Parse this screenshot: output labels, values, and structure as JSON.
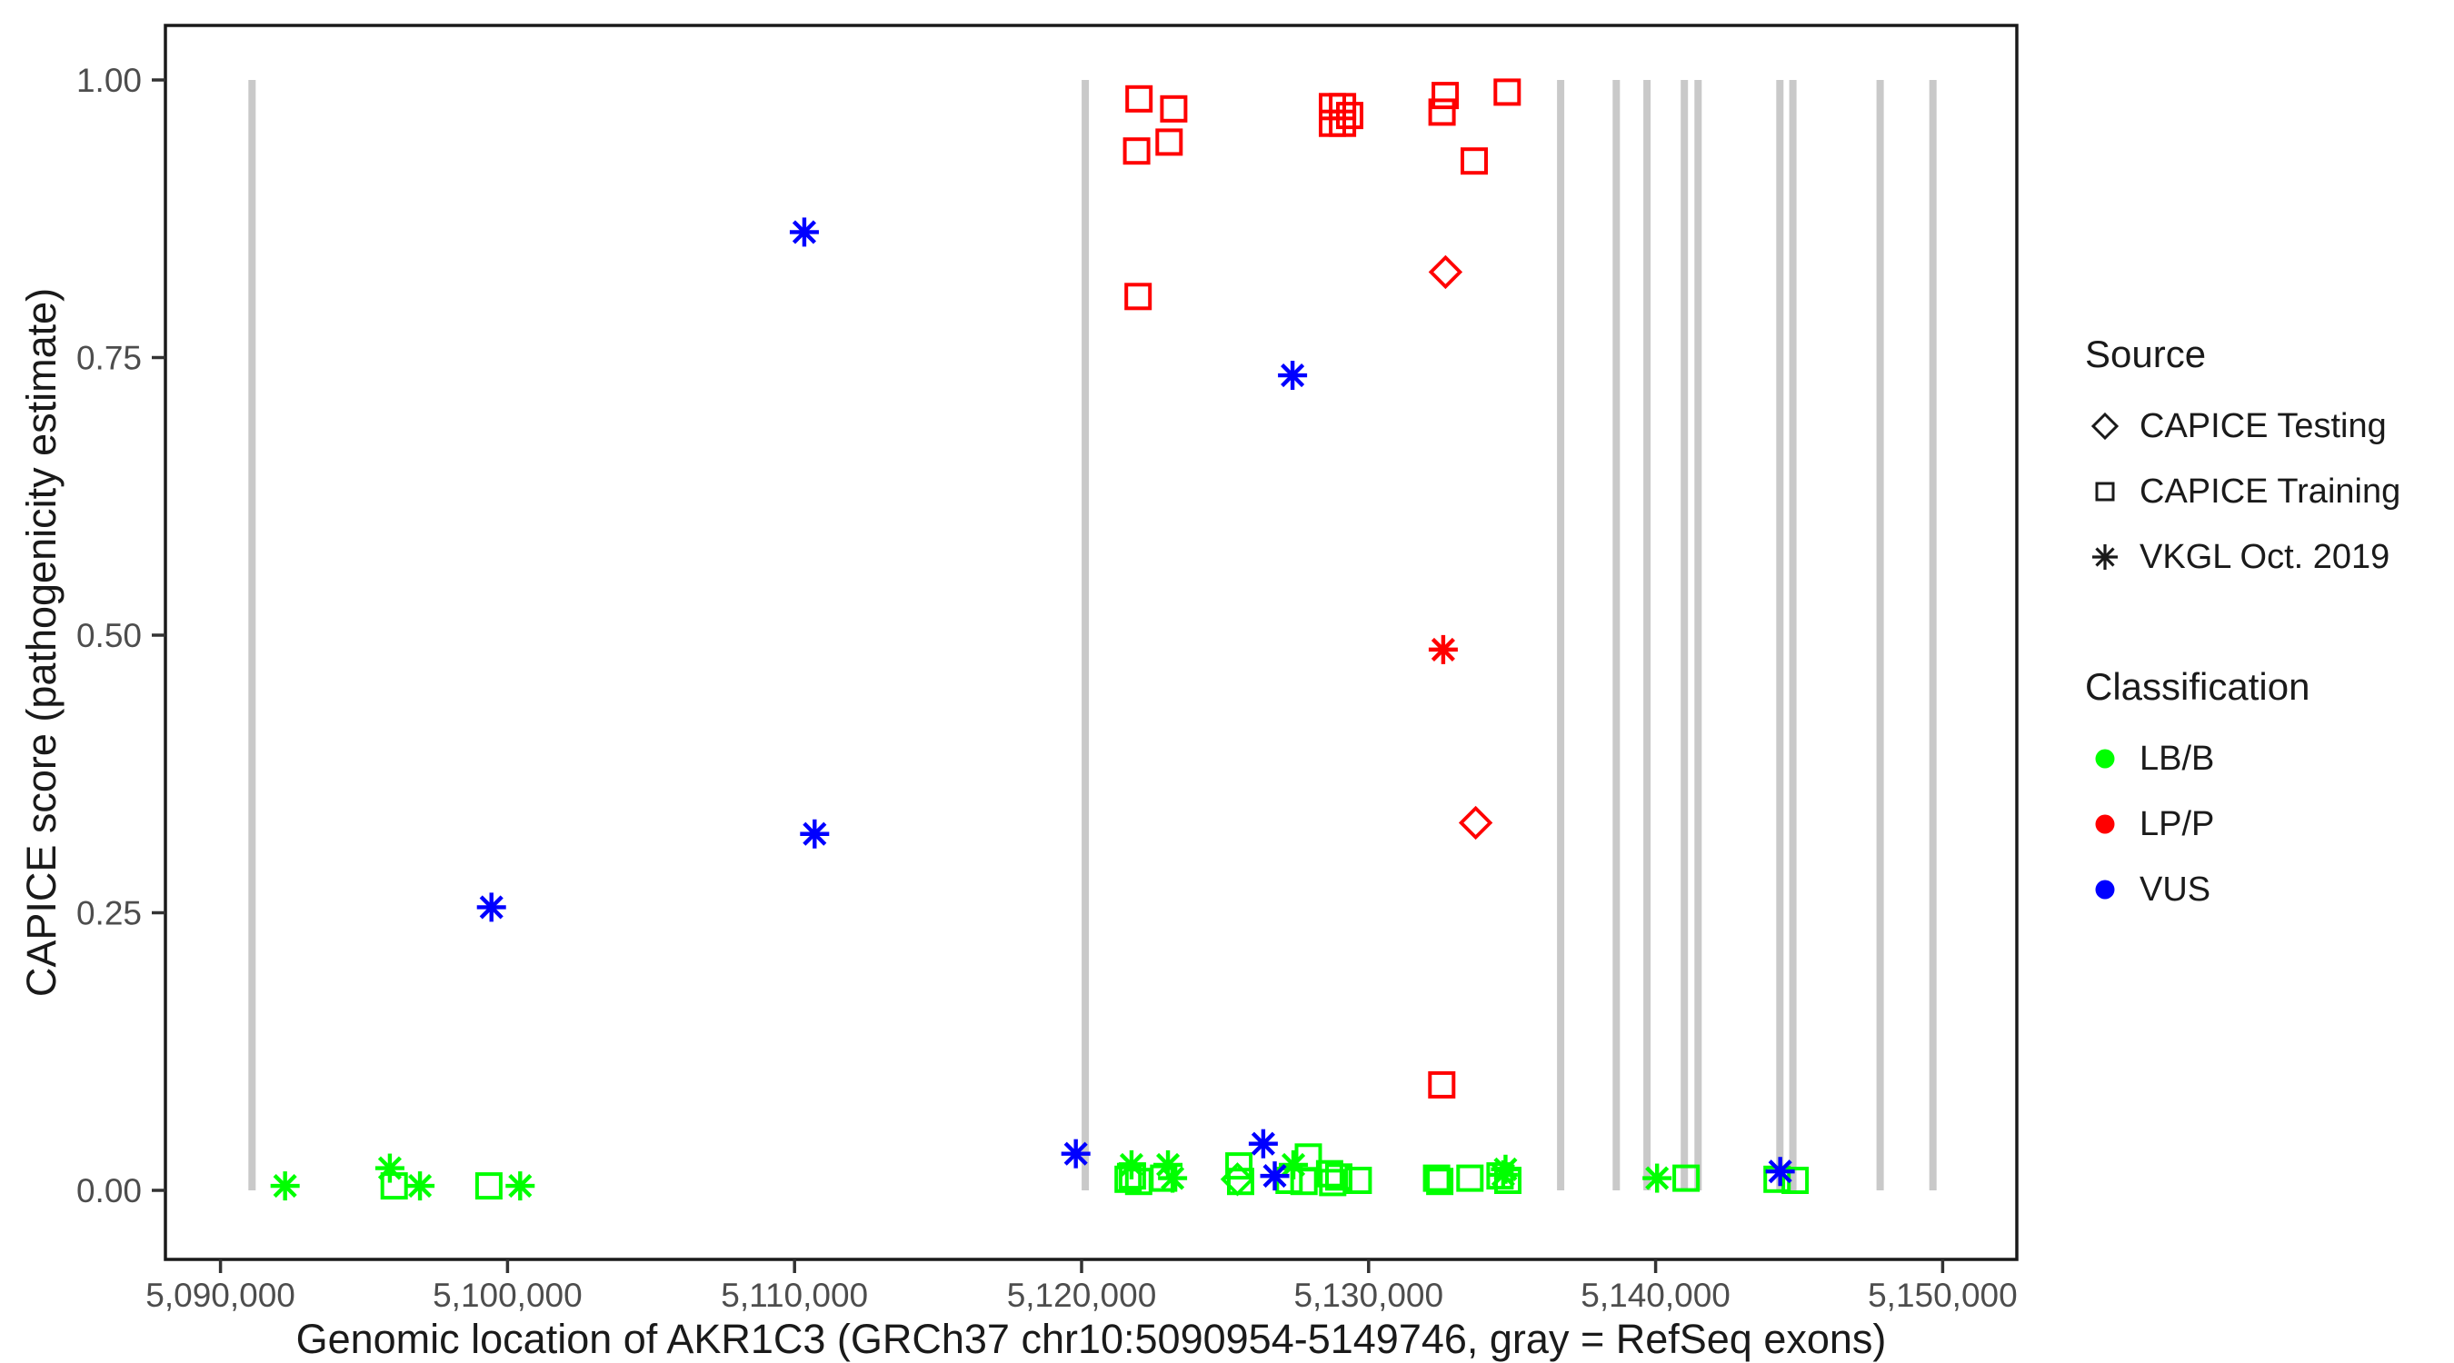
{
  "chart_data": {
    "type": "scatter",
    "title": "",
    "xlabel": "Genomic location of AKR1C3 (GRCh37 chr10:5090954-5149746, gray = RefSeq exons)",
    "ylabel": "CAPICE score (pathogenicity estimate)",
    "x_domain": [
      5088080,
      5152550
    ],
    "y_domain": [
      -0.055,
      1.05
    ],
    "grid": false,
    "legend_position": "right",
    "x_ticks": [
      {
        "value": 5090000,
        "label": "5,090,000"
      },
      {
        "value": 5100000,
        "label": "5,100,000"
      },
      {
        "value": 5110000,
        "label": "5,110,000"
      },
      {
        "value": 5120000,
        "label": "5,120,000"
      },
      {
        "value": 5130000,
        "label": "5,130,000"
      },
      {
        "value": 5140000,
        "label": "5,140,000"
      },
      {
        "value": 5150000,
        "label": "5,150,000"
      }
    ],
    "y_ticks": [
      {
        "value": 0.0,
        "label": "0.00"
      },
      {
        "value": 0.25,
        "label": "0.25"
      },
      {
        "value": 0.5,
        "label": "0.50"
      },
      {
        "value": 0.75,
        "label": "0.75"
      },
      {
        "value": 1.0,
        "label": "1.00"
      }
    ],
    "style": {
      "exon_color": "#c9c9c9",
      "border_color": "#1a1a1a",
      "tick_text_color": "#4d4d4d",
      "background": "#ffffff"
    },
    "classification_colors": {
      "LB/B": "#00ff00",
      "LP/P": "#ff0000",
      "VUS": "#0000ff"
    },
    "source_shapes": {
      "CAPICE Testing": "diamond",
      "CAPICE Training": "square",
      "VKGL Oct. 2019": "asterisk"
    },
    "exons": [
      5091100,
      5120130,
      5136690,
      5138630,
      5139700,
      5141000,
      5141480,
      5144330,
      5144780,
      5147820,
      5149660
    ],
    "exon_span": {
      "y_from": 0.0,
      "y_to": 1.0
    },
    "points": [
      {
        "x": 5122000,
        "y": 0.983,
        "source": "CAPICE Training",
        "classification": "LP/P"
      },
      {
        "x": 5123210,
        "y": 0.974,
        "source": "CAPICE Training",
        "classification": "LP/P"
      },
      {
        "x": 5123050,
        "y": 0.944,
        "source": "CAPICE Training",
        "classification": "LP/P"
      },
      {
        "x": 5121920,
        "y": 0.936,
        "source": "CAPICE Training",
        "classification": "LP/P"
      },
      {
        "x": 5121970,
        "y": 0.805,
        "source": "CAPICE Training",
        "classification": "LP/P"
      },
      {
        "x": 5128740,
        "y": 0.976,
        "source": "CAPICE Training",
        "classification": "LP/P"
      },
      {
        "x": 5129090,
        "y": 0.976,
        "source": "CAPICE Training",
        "classification": "LP/P"
      },
      {
        "x": 5128740,
        "y": 0.961,
        "source": "CAPICE Training",
        "classification": "LP/P"
      },
      {
        "x": 5129090,
        "y": 0.961,
        "source": "CAPICE Training",
        "classification": "LP/P"
      },
      {
        "x": 5129340,
        "y": 0.968,
        "source": "CAPICE Training",
        "classification": "LP/P"
      },
      {
        "x": 5132670,
        "y": 0.986,
        "source": "CAPICE Training",
        "classification": "LP/P"
      },
      {
        "x": 5132560,
        "y": 0.971,
        "source": "CAPICE Training",
        "classification": "LP/P"
      },
      {
        "x": 5134830,
        "y": 0.989,
        "source": "CAPICE Training",
        "classification": "LP/P"
      },
      {
        "x": 5133680,
        "y": 0.927,
        "source": "CAPICE Training",
        "classification": "LP/P"
      },
      {
        "x": 5132550,
        "y": 0.095,
        "source": "CAPICE Training",
        "classification": "LP/P"
      },
      {
        "x": 5132680,
        "y": 0.827,
        "source": "CAPICE Testing",
        "classification": "LP/P"
      },
      {
        "x": 5133730,
        "y": 0.331,
        "source": "CAPICE Testing",
        "classification": "LP/P"
      },
      {
        "x": 5132600,
        "y": 0.487,
        "source": "VKGL Oct. 2019",
        "classification": "LP/P"
      },
      {
        "x": 5096050,
        "y": 0.004,
        "source": "CAPICE Training",
        "classification": "LB/B"
      },
      {
        "x": 5099350,
        "y": 0.004,
        "source": "CAPICE Training",
        "classification": "LB/B"
      },
      {
        "x": 5121620,
        "y": 0.01,
        "source": "CAPICE Training",
        "classification": "LB/B"
      },
      {
        "x": 5121770,
        "y": 0.013,
        "source": "CAPICE Training",
        "classification": "LB/B"
      },
      {
        "x": 5121990,
        "y": 0.008,
        "source": "CAPICE Training",
        "classification": "LB/B"
      },
      {
        "x": 5122860,
        "y": 0.011,
        "source": "CAPICE Training",
        "classification": "LB/B"
      },
      {
        "x": 5125480,
        "y": 0.022,
        "source": "CAPICE Training",
        "classification": "LB/B"
      },
      {
        "x": 5125540,
        "y": 0.008,
        "source": "CAPICE Training",
        "classification": "LB/B"
      },
      {
        "x": 5127230,
        "y": 0.009,
        "source": "CAPICE Training",
        "classification": "LB/B"
      },
      {
        "x": 5127750,
        "y": 0.008,
        "source": "CAPICE Training",
        "classification": "LB/B"
      },
      {
        "x": 5127900,
        "y": 0.03,
        "source": "CAPICE Training",
        "classification": "LB/B"
      },
      {
        "x": 5128640,
        "y": 0.015,
        "source": "CAPICE Training",
        "classification": "LB/B"
      },
      {
        "x": 5128750,
        "y": 0.007,
        "source": "CAPICE Training",
        "classification": "LB/B"
      },
      {
        "x": 5128960,
        "y": 0.012,
        "source": "CAPICE Training",
        "classification": "LB/B"
      },
      {
        "x": 5129640,
        "y": 0.009,
        "source": "CAPICE Training",
        "classification": "LB/B"
      },
      {
        "x": 5132370,
        "y": 0.011,
        "source": "CAPICE Training",
        "classification": "LB/B"
      },
      {
        "x": 5132480,
        "y": 0.008,
        "source": "CAPICE Training",
        "classification": "LB/B"
      },
      {
        "x": 5133530,
        "y": 0.011,
        "source": "CAPICE Training",
        "classification": "LB/B"
      },
      {
        "x": 5134580,
        "y": 0.013,
        "source": "CAPICE Training",
        "classification": "LB/B"
      },
      {
        "x": 5134850,
        "y": 0.009,
        "source": "CAPICE Training",
        "classification": "LB/B"
      },
      {
        "x": 5141060,
        "y": 0.011,
        "source": "CAPICE Training",
        "classification": "LB/B"
      },
      {
        "x": 5144230,
        "y": 0.01,
        "source": "CAPICE Training",
        "classification": "LB/B"
      },
      {
        "x": 5144860,
        "y": 0.009,
        "source": "CAPICE Training",
        "classification": "LB/B"
      },
      {
        "x": 5125430,
        "y": 0.01,
        "source": "CAPICE Testing",
        "classification": "LB/B"
      },
      {
        "x": 5092250,
        "y": 0.004,
        "source": "VKGL Oct. 2019",
        "classification": "LB/B"
      },
      {
        "x": 5095900,
        "y": 0.02,
        "source": "VKGL Oct. 2019",
        "classification": "LB/B"
      },
      {
        "x": 5096950,
        "y": 0.004,
        "source": "VKGL Oct. 2019",
        "classification": "LB/B"
      },
      {
        "x": 5100440,
        "y": 0.004,
        "source": "VKGL Oct. 2019",
        "classification": "LB/B"
      },
      {
        "x": 5121740,
        "y": 0.023,
        "source": "VKGL Oct. 2019",
        "classification": "LB/B"
      },
      {
        "x": 5123010,
        "y": 0.023,
        "source": "VKGL Oct. 2019",
        "classification": "LB/B"
      },
      {
        "x": 5123170,
        "y": 0.011,
        "source": "VKGL Oct. 2019",
        "classification": "LB/B"
      },
      {
        "x": 5127380,
        "y": 0.023,
        "source": "VKGL Oct. 2019",
        "classification": "LB/B"
      },
      {
        "x": 5134690,
        "y": 0.014,
        "source": "VKGL Oct. 2019",
        "classification": "LB/B"
      },
      {
        "x": 5134770,
        "y": 0.019,
        "source": "VKGL Oct. 2019",
        "classification": "LB/B"
      },
      {
        "x": 5140050,
        "y": 0.011,
        "source": "VKGL Oct. 2019",
        "classification": "LB/B"
      },
      {
        "x": 5110340,
        "y": 0.863,
        "source": "VKGL Oct. 2019",
        "classification": "VUS"
      },
      {
        "x": 5127350,
        "y": 0.734,
        "source": "VKGL Oct. 2019",
        "classification": "VUS"
      },
      {
        "x": 5110700,
        "y": 0.321,
        "source": "VKGL Oct. 2019",
        "classification": "VUS"
      },
      {
        "x": 5099440,
        "y": 0.255,
        "source": "VKGL Oct. 2019",
        "classification": "VUS"
      },
      {
        "x": 5119800,
        "y": 0.033,
        "source": "VKGL Oct. 2019",
        "classification": "VUS"
      },
      {
        "x": 5126330,
        "y": 0.042,
        "source": "VKGL Oct. 2019",
        "classification": "VUS"
      },
      {
        "x": 5126730,
        "y": 0.013,
        "source": "VKGL Oct. 2019",
        "classification": "VUS"
      },
      {
        "x": 5144340,
        "y": 0.017,
        "source": "VKGL Oct. 2019",
        "classification": "VUS"
      }
    ]
  },
  "legend": {
    "source": {
      "title": "Source",
      "items": [
        {
          "shape": "diamond",
          "label": "CAPICE Testing"
        },
        {
          "shape": "square",
          "label": "CAPICE Training"
        },
        {
          "shape": "asterisk",
          "label": "VKGL Oct. 2019"
        }
      ]
    },
    "classification": {
      "title": "Classification",
      "items": [
        {
          "color": "#00ff00",
          "label": "LB/B"
        },
        {
          "color": "#ff0000",
          "label": "LP/P"
        },
        {
          "color": "#0000ff",
          "label": "VUS"
        }
      ]
    }
  }
}
